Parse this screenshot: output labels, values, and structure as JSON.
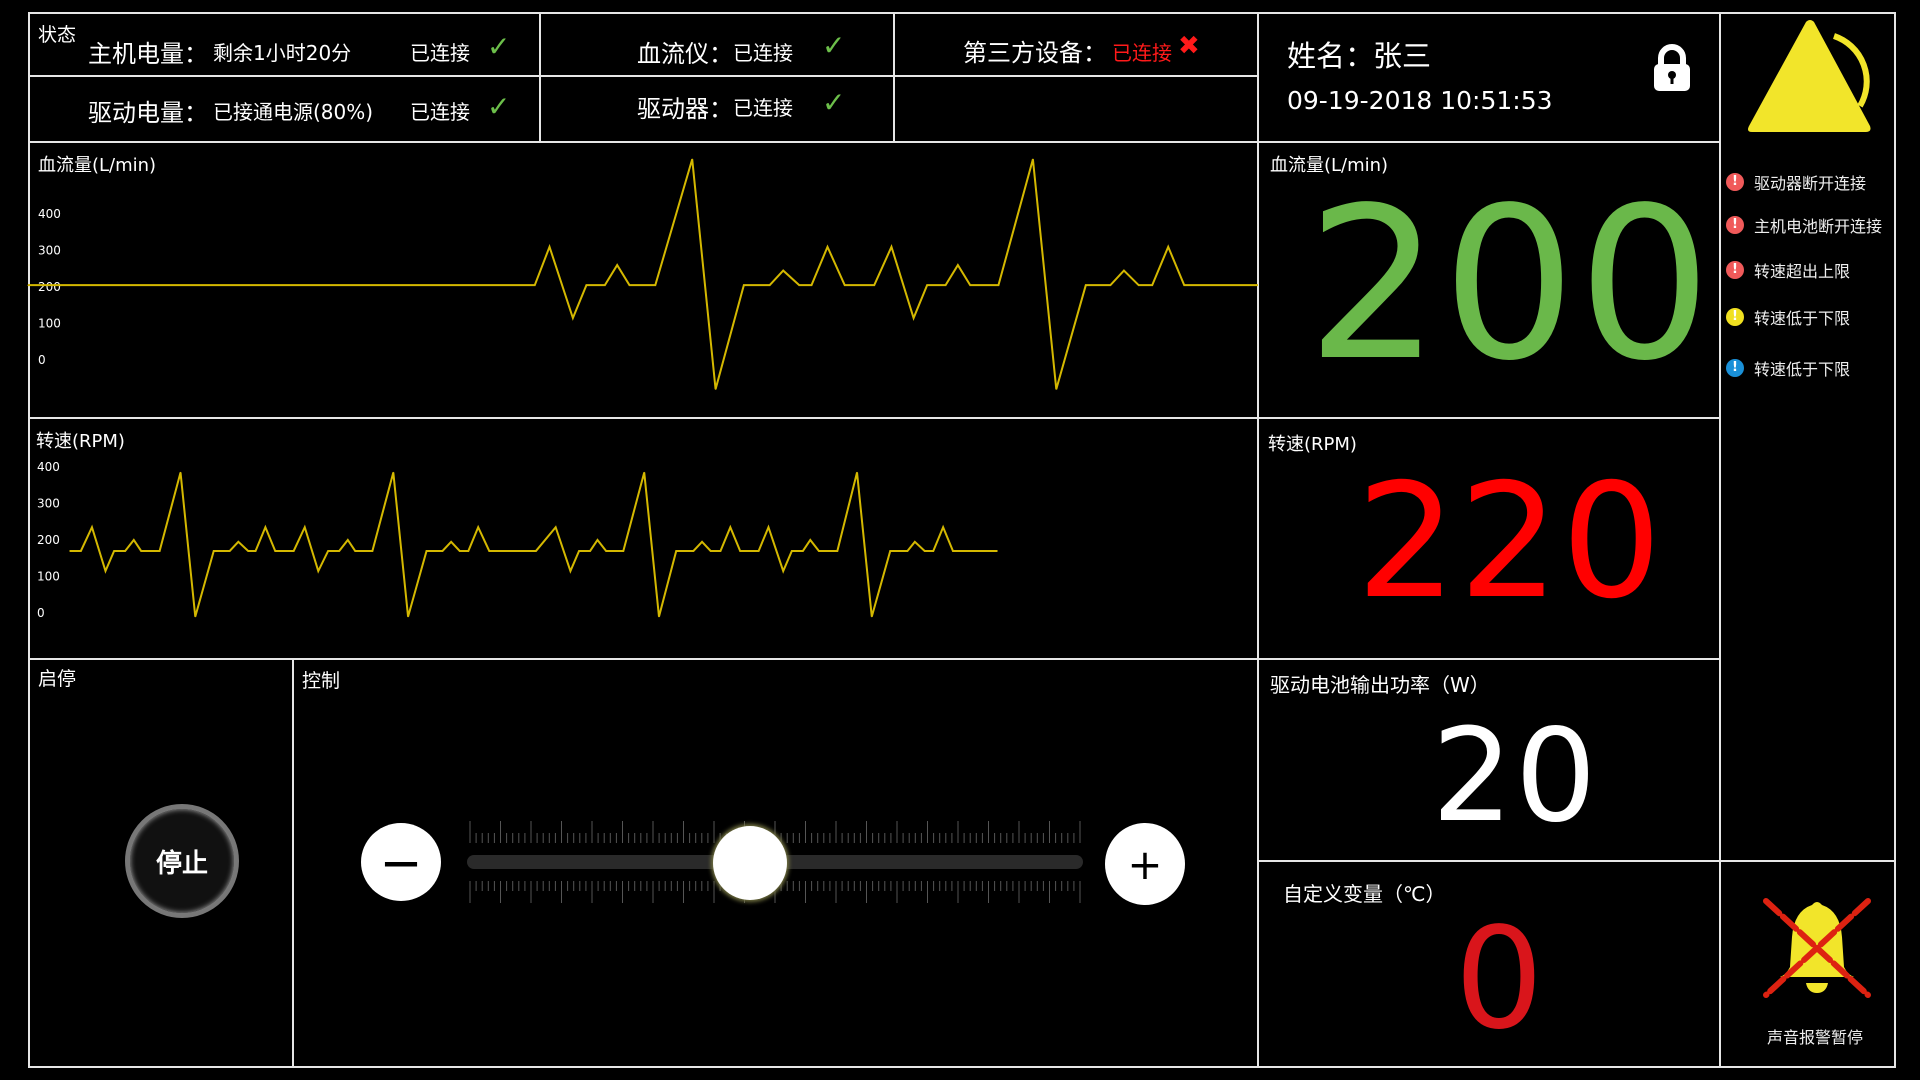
{
  "status": {
    "title": "状态",
    "host_battery": {
      "label": "主机电量：",
      "value": "剩余1小时20分",
      "conn": "已连接",
      "icon": "check-icon"
    },
    "drive_battery": {
      "label": "驱动电量：",
      "value": "已接通电源(80%)",
      "conn": "已连接",
      "icon": "check-icon"
    },
    "flow_meter": {
      "label": "血流仪：",
      "conn": "已连接",
      "icon": "check-icon"
    },
    "driver": {
      "label": "驱动器：",
      "conn": "已连接",
      "icon": "check-icon"
    },
    "third_party": {
      "label": "第三方设备：",
      "conn": "已连接",
      "icon": "cross-icon",
      "color": "#ff1a1a"
    }
  },
  "patient": {
    "name_label": "姓名：",
    "name": "张三",
    "datetime": "09-19-2018 10:51:53",
    "lock_icon": "lock-icon"
  },
  "alarms": [
    {
      "text": "驱动器断开连接",
      "color": "#f05a5a"
    },
    {
      "text": "主机电池断开连接",
      "color": "#f05a5a"
    },
    {
      "text": "转速超出上限",
      "color": "#f05a5a"
    },
    {
      "text": "转速低于下限",
      "color": "#f0e020"
    },
    {
      "text": "转速低于下限",
      "color": "#1a90d8"
    }
  ],
  "readouts": {
    "flow": {
      "label": "血流量(L/min)",
      "value": "200",
      "color": "#6ab84a"
    },
    "rpm": {
      "label": "转速(RPM)",
      "value": "220",
      "color": "#ff0000"
    },
    "power": {
      "label": "驱动电池输出功率（W）",
      "value": "20",
      "color": "#ffffff"
    },
    "custom": {
      "label": "自定义变量（℃）",
      "value": "0",
      "color": "#d9151b"
    }
  },
  "startstop": {
    "title": "启停",
    "button": "停止"
  },
  "control": {
    "title": "控制",
    "minus": "—",
    "plus": "+",
    "slider_percent": 46
  },
  "sound": {
    "label": "声音报警暂停",
    "icon": "bell-muted-icon"
  },
  "chart_data": [
    {
      "type": "line",
      "title": "血流量(L/min)",
      "ylim": [
        0,
        400
      ],
      "yticks": [
        "400",
        "300",
        "200",
        "100",
        "0"
      ],
      "xlim": [
        0,
        100
      ],
      "color": "#d4b800",
      "x": [
        0,
        41.2,
        42.4,
        44.3,
        45.4,
        46.9,
        47.9,
        48.9,
        51.0,
        54.0,
        55.9,
        58.2,
        60.3,
        61.4,
        62.7,
        63.7,
        65.0,
        66.4,
        68.8,
        70.2,
        72.0,
        73.1,
        74.6,
        75.6,
        76.6,
        78.9,
        81.7,
        83.6,
        86.0,
        88.0,
        89.1,
        90.3,
        91.4,
        92.7,
        94.0,
        100
      ],
      "y": [
        205,
        205,
        310,
        115,
        205,
        205,
        260,
        205,
        205,
        550,
        -80,
        205,
        205,
        245,
        205,
        205,
        310,
        205,
        205,
        310,
        115,
        205,
        205,
        260,
        205,
        205,
        550,
        -80,
        205,
        205,
        245,
        205,
        205,
        310,
        205,
        205
      ]
    },
    {
      "type": "line",
      "title": "转速(RPM)",
      "ylim": [
        0,
        400
      ],
      "yticks": [
        "400",
        "300",
        "200",
        "100",
        "0"
      ],
      "xlim": [
        0,
        100
      ],
      "color": "#d4b800",
      "x": [
        3.4,
        4.3,
        5.2,
        6.3,
        7.0,
        7.9,
        8.6,
        9.2,
        10.7,
        12.4,
        13.6,
        15.1,
        16.4,
        17.1,
        17.9,
        18.5,
        19.3,
        20.1,
        21.6,
        22.5,
        23.6,
        24.4,
        25.3,
        26.0,
        26.6,
        28.0,
        29.7,
        30.9,
        32.4,
        33.7,
        34.4,
        35.1,
        35.8,
        36.6,
        37.5,
        41.3,
        42.9,
        44.1,
        44.8,
        45.7,
        46.3,
        47.0,
        48.4,
        50.1,
        51.3,
        52.7,
        54.1,
        54.8,
        55.5,
        56.3,
        57.1,
        57.9,
        59.4,
        60.2,
        61.4,
        62.1,
        63.0,
        63.6,
        64.3,
        65.8,
        67.4,
        68.6,
        70.1,
        71.5,
        72.1,
        72.9,
        73.6,
        74.4,
        75.2,
        78.8
      ],
      "y": [
        170,
        170,
        235,
        115,
        170,
        170,
        200,
        170,
        170,
        385,
        -10,
        170,
        170,
        195,
        170,
        170,
        235,
        170,
        170,
        235,
        115,
        170,
        170,
        200,
        170,
        170,
        385,
        -10,
        170,
        170,
        195,
        170,
        170,
        235,
        170,
        170,
        235,
        115,
        170,
        170,
        200,
        170,
        170,
        385,
        -10,
        170,
        170,
        195,
        170,
        170,
        235,
        170,
        170,
        235,
        115,
        170,
        170,
        200,
        170,
        170,
        385,
        -10,
        170,
        170,
        195,
        170,
        170,
        235,
        170,
        170
      ]
    }
  ]
}
